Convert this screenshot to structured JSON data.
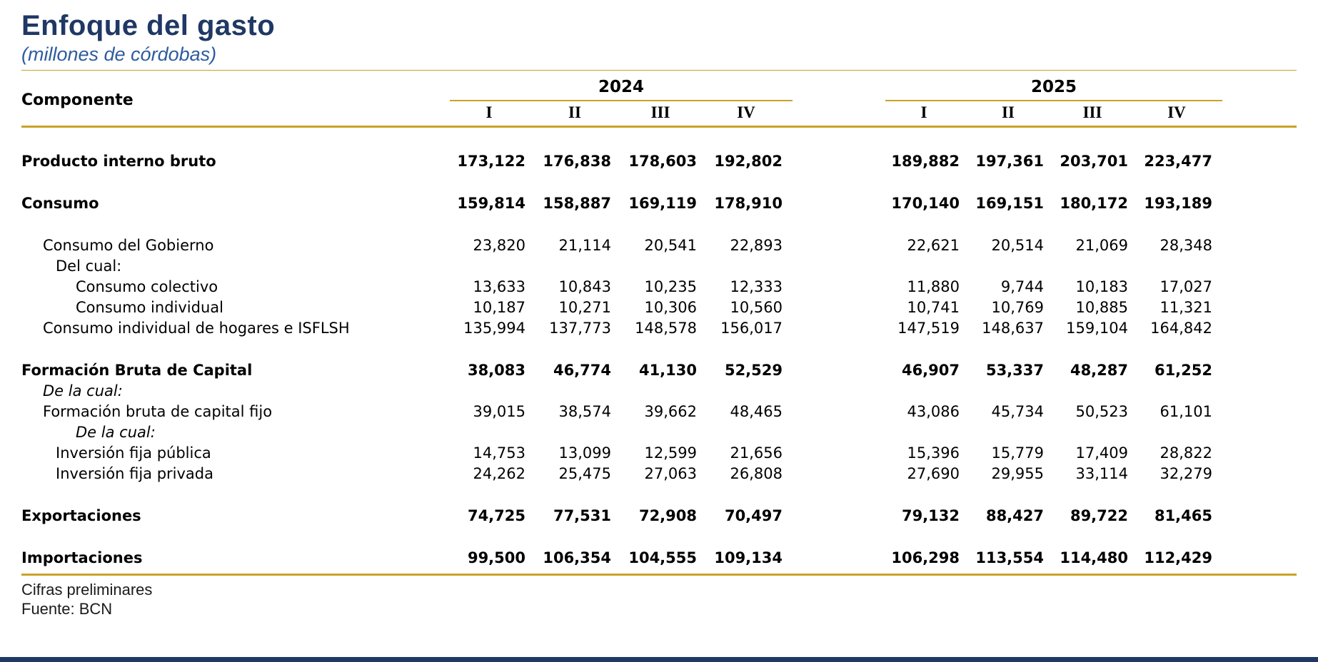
{
  "page": {
    "title": "Enfoque del gasto",
    "subtitle": "(millones de córdobas)"
  },
  "table": {
    "component_header": "Componente",
    "year_groups": [
      {
        "year": "2024",
        "quarters": [
          "I",
          "II",
          "III",
          "IV"
        ]
      },
      {
        "year": "2025",
        "quarters": [
          "I",
          "II",
          "III",
          "IV"
        ]
      }
    ],
    "rows": [
      {
        "label": "Producto interno bruto",
        "bold": true,
        "italic": false,
        "indent": 0,
        "gap": "first",
        "q2024": [
          "173,122",
          "176,838",
          "178,603",
          "192,802"
        ],
        "q2025": [
          "189,882",
          "197,361",
          "203,701",
          "223,477"
        ]
      },
      {
        "label": "Consumo",
        "bold": true,
        "italic": false,
        "indent": 0,
        "gap": "section",
        "q2024": [
          "159,814",
          "158,887",
          "169,119",
          "178,910"
        ],
        "q2025": [
          "170,140",
          "169,151",
          "180,172",
          "193,189"
        ]
      },
      {
        "label": "Consumo del Gobierno",
        "bold": false,
        "italic": false,
        "indent": 1,
        "gap": "section",
        "q2024": [
          "23,820",
          "21,114",
          "20,541",
          "22,893"
        ],
        "q2025": [
          "22,621",
          "20,514",
          "21,069",
          "28,348"
        ]
      },
      {
        "label": "Del cual:",
        "bold": false,
        "italic": false,
        "indent": 2,
        "gap": "tight",
        "q2024": [],
        "q2025": []
      },
      {
        "label": "Consumo colectivo",
        "bold": false,
        "italic": false,
        "indent": 3,
        "gap": "tight",
        "q2024": [
          "13,633",
          "10,843",
          "10,235",
          "12,333"
        ],
        "q2025": [
          "11,880",
          "9,744",
          "10,183",
          "17,027"
        ]
      },
      {
        "label": "Consumo individual",
        "bold": false,
        "italic": false,
        "indent": 3,
        "gap": "tight",
        "q2024": [
          "10,187",
          "10,271",
          "10,306",
          "10,560"
        ],
        "q2025": [
          "10,741",
          "10,769",
          "10,885",
          "11,321"
        ]
      },
      {
        "label": "Consumo individual de hogares e ISFLSH",
        "bold": false,
        "italic": false,
        "indent": 1,
        "gap": "tight",
        "q2024": [
          "135,994",
          "137,773",
          "148,578",
          "156,017"
        ],
        "q2025": [
          "147,519",
          "148,637",
          "159,104",
          "164,842"
        ]
      },
      {
        "label": "Formación Bruta de Capital",
        "bold": true,
        "italic": false,
        "indent": 0,
        "gap": "section",
        "q2024": [
          "38,083",
          "46,774",
          "41,130",
          "52,529"
        ],
        "q2025": [
          "46,907",
          "53,337",
          "48,287",
          "61,252"
        ]
      },
      {
        "label": "De la cual:",
        "bold": false,
        "italic": true,
        "indent": 1,
        "gap": "tight",
        "q2024": [],
        "q2025": []
      },
      {
        "label": "Formación bruta de capital fijo",
        "bold": false,
        "italic": false,
        "indent": 1,
        "gap": "tight",
        "q2024": [
          "39,015",
          "38,574",
          "39,662",
          "48,465"
        ],
        "q2025": [
          "43,086",
          "45,734",
          "50,523",
          "61,101"
        ]
      },
      {
        "label": "De la cual:",
        "bold": false,
        "italic": true,
        "indent": 3,
        "gap": "tight",
        "q2024": [],
        "q2025": []
      },
      {
        "label": "Inversión fija pública",
        "bold": false,
        "italic": false,
        "indent": 2,
        "gap": "tight",
        "q2024": [
          "14,753",
          "13,099",
          "12,599",
          "21,656"
        ],
        "q2025": [
          "15,396",
          "15,779",
          "17,409",
          "28,822"
        ]
      },
      {
        "label": "Inversión fija privada",
        "bold": false,
        "italic": false,
        "indent": 2,
        "gap": "tight",
        "q2024": [
          "24,262",
          "25,475",
          "27,063",
          "26,808"
        ],
        "q2025": [
          "27,690",
          "29,955",
          "33,114",
          "32,279"
        ]
      },
      {
        "label": "Exportaciones",
        "bold": true,
        "italic": false,
        "indent": 0,
        "gap": "section",
        "q2024": [
          "74,725",
          "77,531",
          "72,908",
          "70,497"
        ],
        "q2025": [
          "79,132",
          "88,427",
          "89,722",
          "81,465"
        ]
      },
      {
        "label": "Importaciones",
        "bold": true,
        "italic": false,
        "indent": 0,
        "gap": "section",
        "q2024": [
          "99,500",
          "106,354",
          "104,555",
          "109,134"
        ],
        "q2025": [
          "106,298",
          "113,554",
          "114,480",
          "112,429"
        ]
      }
    ]
  },
  "footnotes": {
    "line1": "Cifras preliminares",
    "line2": "Fuente: BCN"
  },
  "colors": {
    "title_navy": "#1F3864",
    "subtitle_blue": "#2E5C9E",
    "rule_gold": "#C9A227",
    "bottom_bar_navy": "#1F3864"
  }
}
